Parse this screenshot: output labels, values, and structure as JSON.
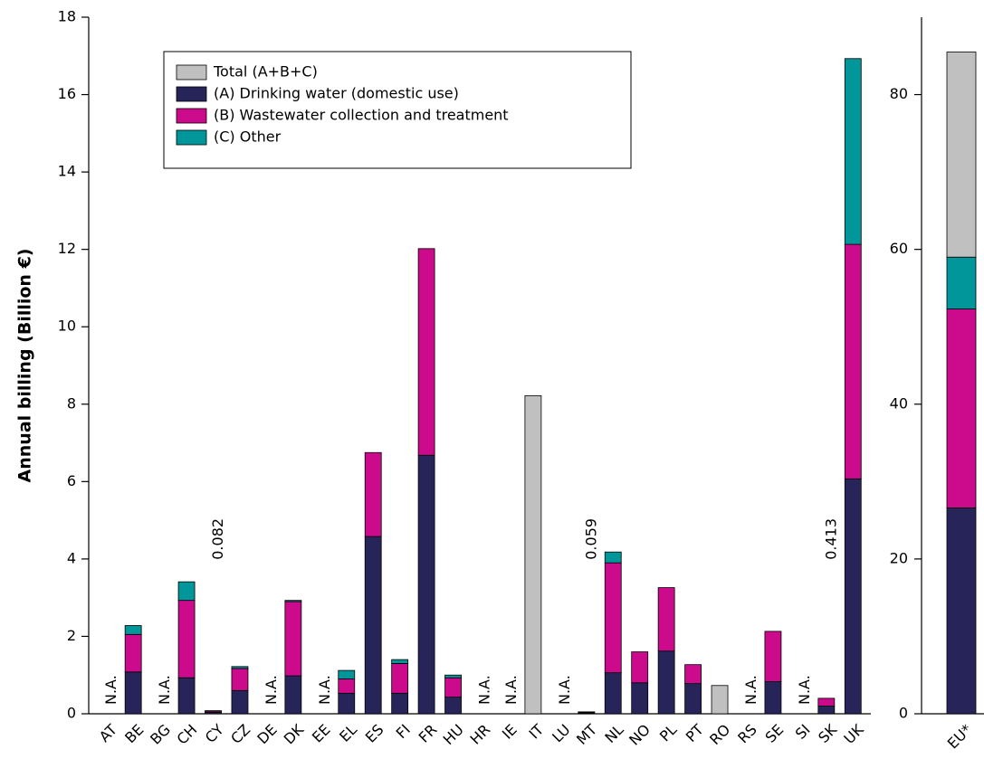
{
  "chart_data": [
    {
      "type": "bar",
      "stacked": true,
      "y_label": "Annual billing (Billion €)",
      "categories": [
        "AT",
        "BE",
        "BG",
        "CH",
        "CY",
        "CZ",
        "DE",
        "DK",
        "EE",
        "EL",
        "ES",
        "FI",
        "FR",
        "HU",
        "HR",
        "IE",
        "IT",
        "LU",
        "MT",
        "NL",
        "NO",
        "PL",
        "PT",
        "RO",
        "RS",
        "SE",
        "SI",
        "SK",
        "UK"
      ],
      "series": [
        {
          "name": "Total (A+B+C)",
          "color": "#c0c0c0",
          "values": [
            null,
            null,
            null,
            null,
            null,
            null,
            null,
            null,
            null,
            null,
            null,
            null,
            null,
            null,
            null,
            null,
            8.22,
            null,
            null,
            null,
            null,
            null,
            null,
            0.73,
            null,
            null,
            null,
            null,
            null
          ]
        },
        {
          "name": "(A) Drinking water (domestic use)",
          "color": "#27245a",
          "values": [
            null,
            1.08,
            null,
            0.93,
            0.04,
            0.6,
            null,
            0.98,
            null,
            0.53,
            4.58,
            0.53,
            6.68,
            0.43,
            null,
            null,
            null,
            null,
            0.02,
            1.06,
            0.8,
            1.62,
            0.78,
            null,
            null,
            0.83,
            null,
            0.2,
            6.07
          ]
        },
        {
          "name": "(B) Wastewater collection and treatment",
          "color": "#cc0a8c",
          "values": [
            null,
            0.97,
            null,
            2.0,
            0.03,
            0.57,
            null,
            1.92,
            null,
            0.37,
            2.17,
            0.77,
            5.34,
            0.5,
            null,
            null,
            null,
            null,
            0.02,
            2.84,
            0.8,
            1.64,
            0.49,
            null,
            null,
            1.3,
            null,
            0.2,
            6.06
          ]
        },
        {
          "name": "(C) Other",
          "color": "#00969a",
          "values": [
            null,
            0.23,
            null,
            0.48,
            0.01,
            0.05,
            null,
            0.03,
            null,
            0.22,
            null,
            0.1,
            null,
            0.07,
            null,
            null,
            null,
            null,
            0.01,
            0.28,
            null,
            null,
            null,
            null,
            null,
            null,
            null,
            null,
            4.8
          ]
        }
      ],
      "annotations": [
        {
          "category": "AT",
          "text": "N.A."
        },
        {
          "category": "BG",
          "text": "N.A."
        },
        {
          "category": "CY",
          "text": "0.082"
        },
        {
          "category": "DE",
          "text": "N.A."
        },
        {
          "category": "EE",
          "text": "N.A."
        },
        {
          "category": "HR",
          "text": "N.A."
        },
        {
          "category": "IE",
          "text": "N.A."
        },
        {
          "category": "LU",
          "text": "N.A."
        },
        {
          "category": "MT",
          "text": "0.059"
        },
        {
          "category": "RS",
          "text": "N.A."
        },
        {
          "category": "SI",
          "text": "N.A."
        },
        {
          "category": "SK",
          "text": "0.413"
        }
      ],
      "ylim": [
        0,
        18
      ],
      "yticks": [
        0,
        2,
        4,
        6,
        8,
        10,
        12,
        14,
        16,
        18
      ],
      "legend": "upper left"
    },
    {
      "type": "bar",
      "stacked": true,
      "categories": [
        "EU*"
      ],
      "series": [
        {
          "color": "#c0c0c0",
          "values": [
            26.5
          ]
        },
        {
          "color": "#27245a",
          "values": [
            26.6
          ]
        },
        {
          "color": "#cc0a8c",
          "values": [
            25.7
          ]
        },
        {
          "color": "#00969a",
          "values": [
            6.7
          ]
        }
      ],
      "ylim": [
        0,
        90
      ],
      "yticks": [
        0,
        20,
        40,
        60,
        80
      ]
    }
  ]
}
